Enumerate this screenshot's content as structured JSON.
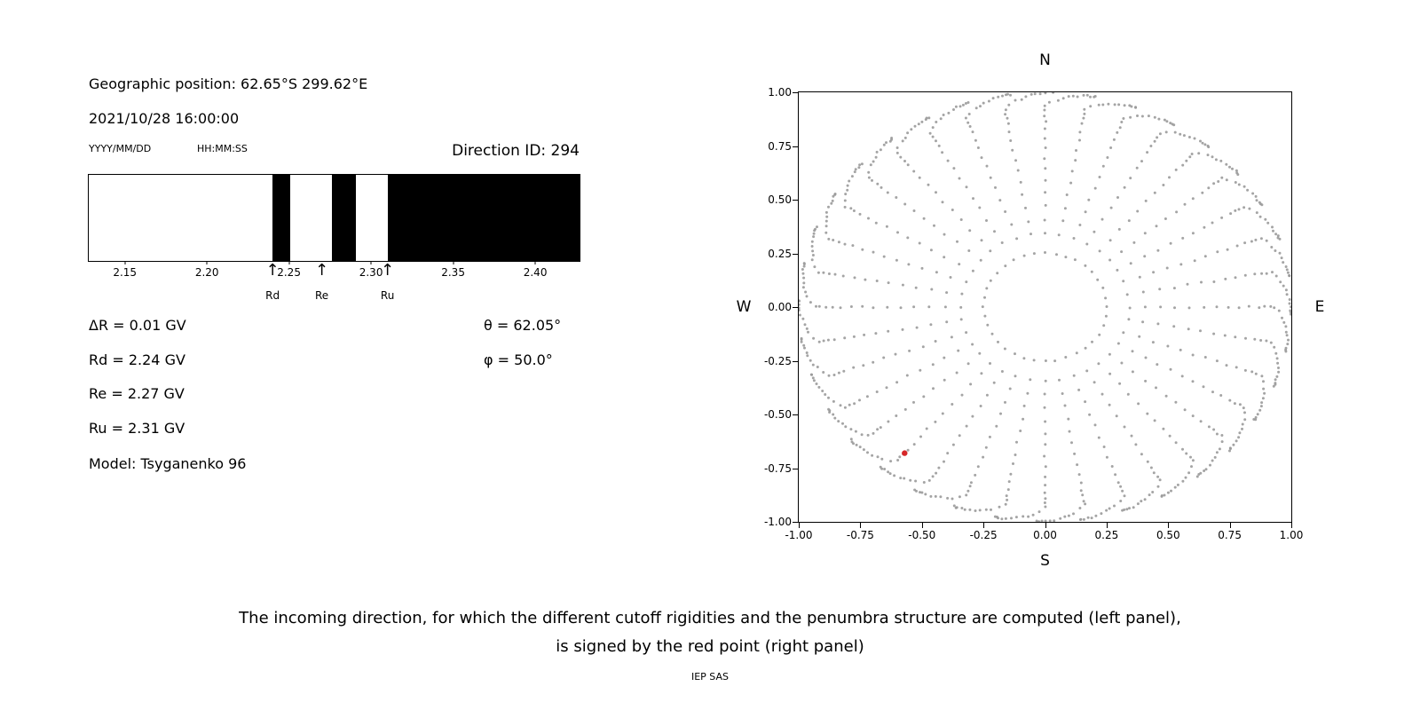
{
  "left_panel": {
    "geo_position": "Geographic position: 62.65°S 299.62°E",
    "datetime": "2021/10/28 16:00:00",
    "date_format_label": "YYYY/MM/DD",
    "time_format_label": "HH:MM:SS",
    "direction_id_label": "Direction ID: 294",
    "delta_r": "ΔR = 0.01 GV",
    "rd": "Rd = 2.24 GV",
    "re": "Re = 2.27 GV",
    "ru": "Ru = 2.31 GV",
    "model": "Model: Tsyganenko 96",
    "theta": "θ = 62.05°",
    "phi": "φ = 50.0°"
  },
  "right_panel": {
    "north_label": "N",
    "south_label": "S",
    "east_label": "E",
    "west_label": "W"
  },
  "caption": {
    "line1": "The incoming direction, for which the different cutoff rigidities and the penumbra structure are computed (left panel),",
    "line2": "is signed by the red point (right panel)"
  },
  "footer": "IEP SAS",
  "chart_data": [
    {
      "type": "bar",
      "name": "penumbra-structure",
      "x_unit": "GV",
      "x_range": [
        2.128,
        2.427
      ],
      "x_ticks": [
        "2.15",
        "2.20",
        "2.25",
        "2.30",
        "2.35",
        "2.40"
      ],
      "forbidden_bands_gv": [
        [
          2.24,
          2.251
        ],
        [
          2.276,
          2.291
        ],
        [
          2.31,
          2.427
        ]
      ],
      "markers": [
        {
          "label": "Rd",
          "value_gv": 2.24
        },
        {
          "label": "Re",
          "value_gv": 2.27
        },
        {
          "label": "Ru",
          "value_gv": 2.31
        }
      ],
      "colors": {
        "forbidden": "#000000",
        "allowed": "#ffffff",
        "axis": "#000000"
      }
    },
    {
      "type": "scatter",
      "name": "incoming-directions-sky-map",
      "xlim": [
        -1,
        1
      ],
      "ylim": [
        -1,
        1
      ],
      "x_ticks": [
        "-1.00",
        "-0.75",
        "-0.50",
        "-0.25",
        "0.00",
        "0.25",
        "0.50",
        "0.75",
        "1.00"
      ],
      "y_ticks": [
        "1.00",
        "0.75",
        "0.50",
        "0.25",
        "0.00",
        "-0.25",
        "-0.50",
        "-0.75",
        "-1.00"
      ],
      "axis_labels": {
        "top": "N",
        "bottom": "S",
        "left": "W",
        "right": "E"
      },
      "grid": false,
      "series": [
        {
          "name": "direction-grid",
          "marker_color": "#9a9a9a",
          "radius_mapping": "r = sin(zenith_deg)",
          "azimuths_deg": [
            0,
            10,
            20,
            30,
            40,
            50,
            60,
            70,
            80,
            90,
            100,
            110,
            120,
            130,
            140,
            150,
            160,
            170,
            180,
            190,
            200,
            210,
            220,
            230,
            240,
            250,
            260,
            270,
            280,
            290,
            300,
            310,
            320,
            330,
            340,
            350
          ],
          "zenith_deg": [
            14.5,
            20,
            24,
            28,
            32,
            36,
            40,
            44,
            48,
            52,
            56,
            60,
            63,
            66,
            69,
            72,
            75,
            77,
            79,
            81,
            83,
            85,
            86.5,
            88,
            89,
            89.6
          ],
          "curl_start_deg": 70,
          "curl_rate": 0.6
        },
        {
          "name": "selected-direction",
          "marker_color": "#d62728",
          "points": [
            [
              -0.57,
              -0.68
            ]
          ],
          "theta_deg": 62.05,
          "phi_deg": 50.0
        }
      ]
    }
  ]
}
